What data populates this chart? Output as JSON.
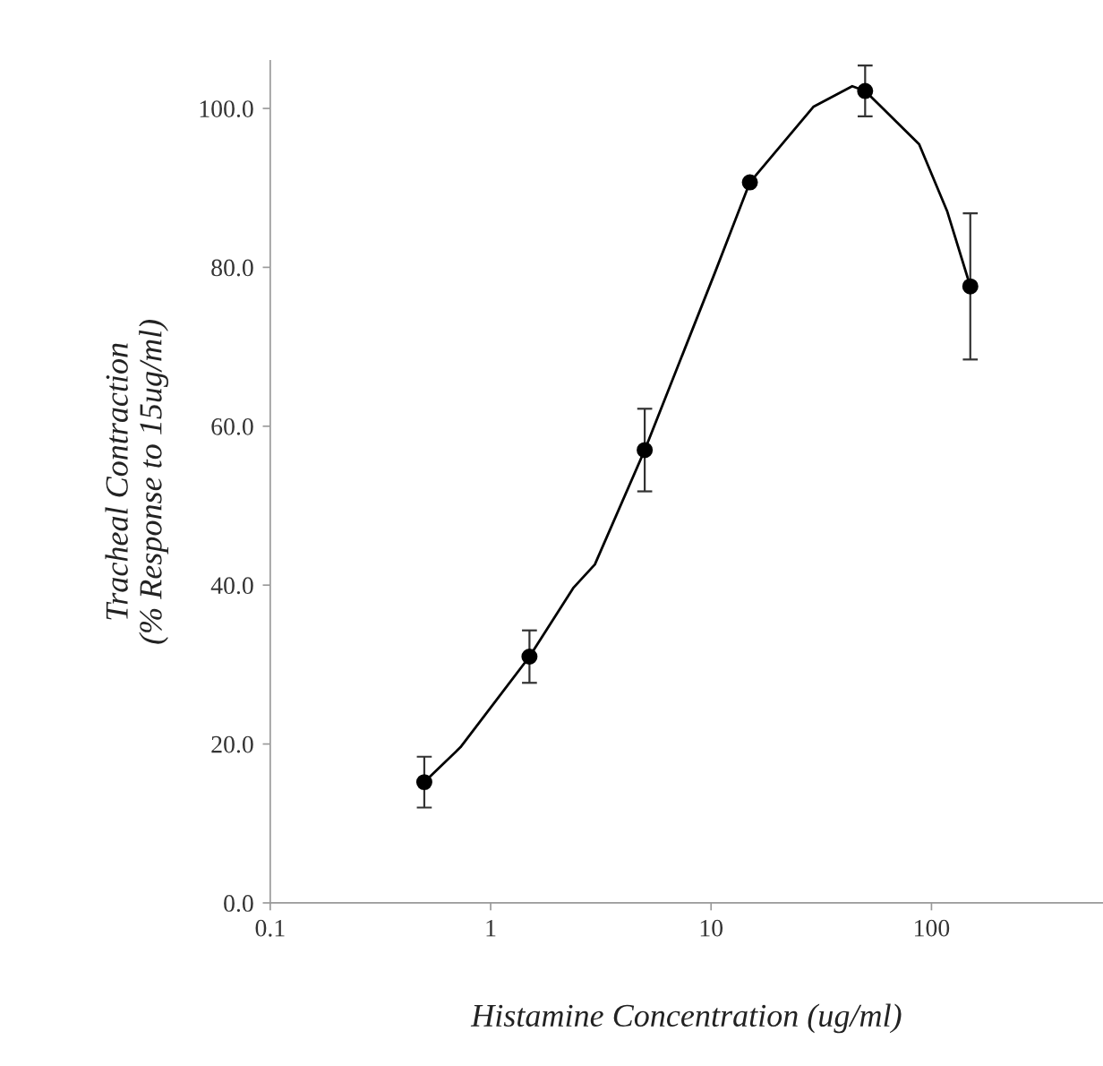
{
  "chart_data": {
    "type": "scatter",
    "xlabel": "Histamine Concentration (ug/ml)",
    "ylabel": "Tracheal Contraction\n(% Response to 15ug/ml)",
    "log": "x",
    "xlim": [
      0.1,
      600
    ],
    "xticks": [
      0.1,
      1,
      10,
      100
    ],
    "ylim": [
      0,
      106
    ],
    "yticks": [
      {
        "value": 0,
        "label": "0.0"
      },
      {
        "value": 20,
        "label": "20.0"
      },
      {
        "value": 40,
        "label": "40.0"
      },
      {
        "value": 60,
        "label": "60.0"
      },
      {
        "value": 80,
        "label": "80.0"
      },
      {
        "value": 100,
        "label": "100.0"
      }
    ],
    "grid": false,
    "legend": false,
    "series": [
      {
        "type": "line",
        "color": "#000000",
        "marker": "none",
        "line_style": "solid",
        "x": [
          0.5,
          0.73,
          1.5,
          2.38,
          2.97,
          5,
          10.4,
          15,
          29.1,
          43.7,
          50,
          87.9,
          118,
          150
        ],
        "values": [
          15.2,
          19.6,
          31.0,
          39.7,
          42.6,
          57.0,
          79.3,
          90.7,
          100.2,
          102.8,
          102.2,
          95.5,
          87.0,
          77.6
        ]
      },
      {
        "color": "#000000",
        "marker": "circle",
        "x": [
          0.5,
          1.5,
          5,
          15,
          50,
          150
        ],
        "values": [
          15.2,
          31.0,
          57.0,
          90.7,
          102.2,
          77.6
        ],
        "errors": [
          3.2,
          3.3,
          5.2,
          null,
          3.2,
          9.2
        ]
      }
    ]
  }
}
